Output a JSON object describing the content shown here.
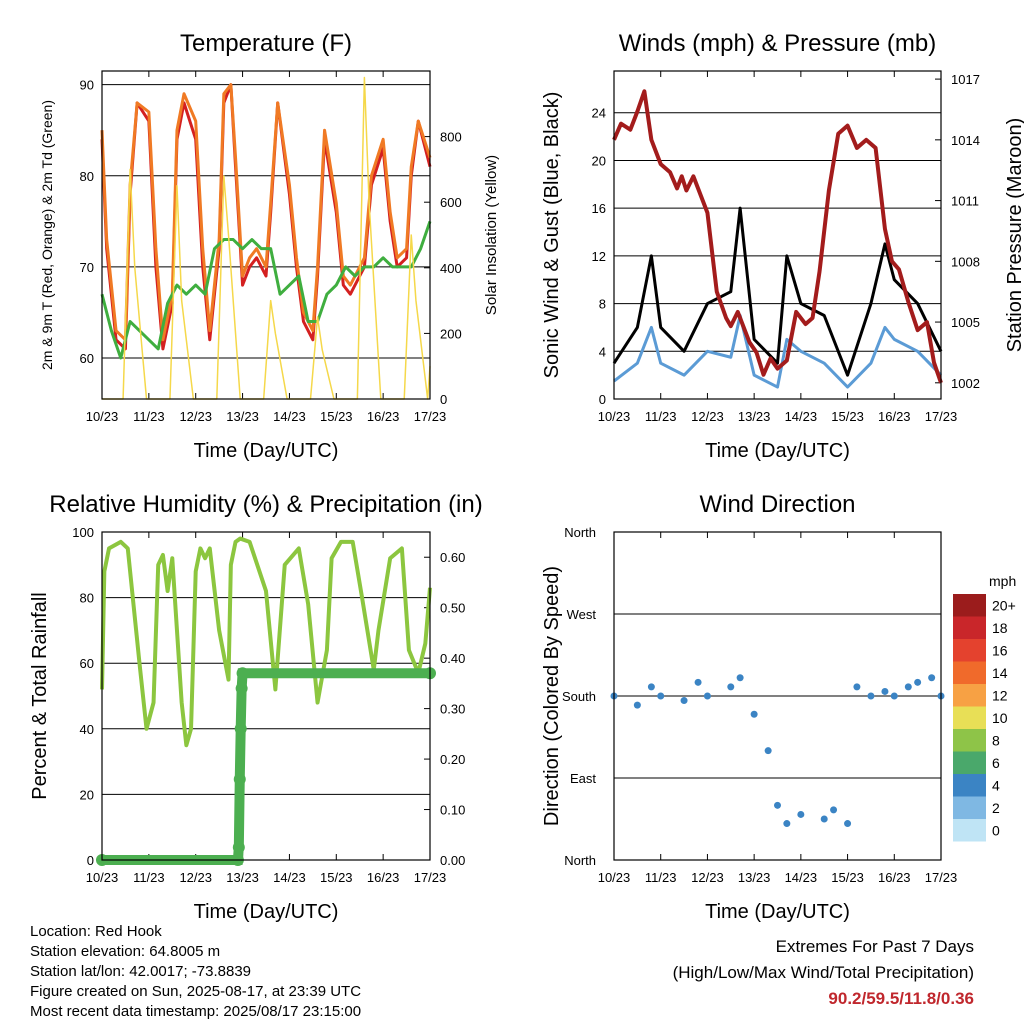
{
  "chart_data": [
    {
      "type": "line",
      "title": "Temperature (F)",
      "xlabel": "Time (Day/UTC)",
      "ylabel": "2m & 9m T (Red, Orange) & 2m Td (Green)",
      "y2label": "Solar Insolation (Yellow)",
      "ylim": [
        55.5,
        91.5
      ],
      "y2lim": [
        0,
        1000
      ],
      "yticks": [
        60,
        70,
        80,
        90
      ],
      "y2ticks": [
        0,
        200,
        400,
        600,
        800
      ],
      "xticks": [
        "10/23",
        "11/23",
        "12/23",
        "13/23",
        "14/23",
        "15/23",
        "16/23",
        "17/23"
      ],
      "grid": true,
      "series": [
        {
          "key": "t2m",
          "color": "#d42020",
          "x": [
            0,
            0.1,
            0.3,
            0.5,
            0.6,
            0.75,
            1.0,
            1.15,
            1.3,
            1.5,
            1.6,
            1.75,
            2.0,
            2.15,
            2.3,
            2.5,
            2.6,
            2.75,
            2.85,
            3.0,
            3.15,
            3.3,
            3.5,
            3.6,
            3.75,
            4.0,
            4.15,
            4.3,
            4.5,
            4.6,
            4.75,
            5.0,
            5.15,
            5.3,
            5.5,
            5.6,
            5.75,
            6.0,
            6.15,
            6.3,
            6.5,
            6.6,
            6.75,
            7.0
          ],
          "y": [
            84,
            72,
            62,
            61,
            78,
            88,
            86,
            70,
            61,
            66,
            84,
            88,
            84,
            70,
            62,
            72,
            88,
            90,
            81,
            68,
            70,
            71,
            69,
            76,
            88,
            78,
            70,
            64,
            62,
            69,
            84,
            76,
            68,
            67,
            69,
            70,
            79,
            83,
            75,
            70,
            71,
            80,
            86,
            81
          ]
        },
        {
          "key": "t9m",
          "color": "#f07a24",
          "x": [
            0,
            0.1,
            0.3,
            0.5,
            0.6,
            0.75,
            1.0,
            1.15,
            1.3,
            1.5,
            1.6,
            1.75,
            2.0,
            2.15,
            2.3,
            2.5,
            2.6,
            2.75,
            2.85,
            3.0,
            3.15,
            3.3,
            3.5,
            3.6,
            3.75,
            4.0,
            4.15,
            4.3,
            4.5,
            4.6,
            4.75,
            5.0,
            5.15,
            5.3,
            5.5,
            5.6,
            5.75,
            6.0,
            6.15,
            6.3,
            6.5,
            6.6,
            6.75,
            7.0
          ],
          "y": [
            85,
            73,
            63,
            62,
            79,
            88,
            87,
            72,
            62,
            67,
            85,
            89,
            86,
            72,
            63,
            73,
            89,
            90,
            82,
            69,
            71,
            72,
            70,
            77,
            88,
            79,
            71,
            65,
            63,
            70,
            85,
            77,
            69,
            68,
            70,
            71,
            80,
            84,
            76,
            71,
            72,
            81,
            86,
            82
          ]
        },
        {
          "key": "td2m",
          "color": "#3fae3f",
          "x": [
            0,
            0.2,
            0.4,
            0.6,
            0.8,
            1.0,
            1.2,
            1.4,
            1.6,
            1.8,
            2.0,
            2.2,
            2.4,
            2.6,
            2.8,
            3.0,
            3.2,
            3.4,
            3.6,
            3.8,
            4.0,
            4.2,
            4.4,
            4.6,
            4.8,
            5.0,
            5.2,
            5.4,
            5.6,
            5.8,
            6.0,
            6.2,
            6.4,
            6.6,
            6.8,
            7.0
          ],
          "y": [
            67,
            63,
            60,
            64,
            63,
            62,
            61,
            66,
            68,
            67,
            68,
            67,
            72,
            73,
            73,
            72,
            73,
            72,
            72,
            67,
            68,
            69,
            64,
            64,
            67,
            68,
            70,
            69,
            70,
            70,
            71,
            70,
            70,
            70,
            72,
            75
          ]
        },
        {
          "key": "solar",
          "color": "#f5d84a",
          "axis": "y2",
          "x": [
            0,
            0.45,
            0.6,
            0.7,
            0.95,
            1.45,
            1.6,
            1.7,
            1.95,
            2.45,
            2.6,
            2.7,
            2.95,
            3.45,
            3.6,
            3.7,
            3.95,
            4.45,
            4.6,
            4.7,
            4.95,
            5.45,
            5.6,
            5.7,
            5.95,
            6.45,
            6.6,
            6.7,
            6.95,
            7.0
          ],
          "y": [
            0,
            0,
            700,
            400,
            0,
            0,
            650,
            300,
            0,
            0,
            680,
            500,
            0,
            0,
            300,
            200,
            0,
            0,
            250,
            150,
            0,
            0,
            980,
            600,
            0,
            0,
            500,
            300,
            0,
            100
          ]
        }
      ]
    },
    {
      "type": "line",
      "title": "Winds (mph) & Pressure (mb)",
      "xlabel": "Time (Day/UTC)",
      "ylabel": "Sonic Wind & Gust (Blue, Black)",
      "y2label": "Station Pressure (Maroon)",
      "ylim": [
        0,
        27.5
      ],
      "y2lim": [
        1001.2,
        1017.4
      ],
      "yticks": [
        0,
        4,
        8,
        12,
        16,
        20,
        24
      ],
      "y2ticks": [
        1002,
        1005,
        1008,
        1011,
        1014,
        1017
      ],
      "xticks": [
        "10/23",
        "11/23",
        "12/23",
        "13/23",
        "14/23",
        "15/23",
        "16/23",
        "17/23"
      ],
      "grid": true,
      "series": [
        {
          "key": "wind",
          "color": "#5b9bd5",
          "x": [
            0,
            0.5,
            0.8,
            1.0,
            1.5,
            2.0,
            2.5,
            2.7,
            3.0,
            3.5,
            3.7,
            4.0,
            4.5,
            5.0,
            5.5,
            5.8,
            6.0,
            6.5,
            7.0
          ],
          "y": [
            1.5,
            3,
            6,
            3,
            2,
            4,
            3.5,
            7,
            2,
            1,
            5,
            4,
            3,
            1,
            3,
            6,
            5,
            4,
            2
          ]
        },
        {
          "key": "gust",
          "color": "#000000",
          "x": [
            0,
            0.5,
            0.8,
            1.0,
            1.5,
            2.0,
            2.5,
            2.7,
            3.0,
            3.5,
            3.7,
            4.0,
            4.5,
            5.0,
            5.5,
            5.8,
            6.0,
            6.5,
            7.0
          ],
          "y": [
            3,
            6,
            12,
            6,
            4,
            8,
            9,
            16,
            5,
            3,
            12,
            8,
            7,
            2,
            8,
            13,
            10,
            8,
            4
          ]
        },
        {
          "key": "pressure",
          "color": "#a31c1c",
          "axis": "y2",
          "x": [
            0,
            0.15,
            0.35,
            0.5,
            0.65,
            0.8,
            1.0,
            1.2,
            1.35,
            1.45,
            1.55,
            1.7,
            2.0,
            2.2,
            2.4,
            2.5,
            2.65,
            2.9,
            3.05,
            3.2,
            3.35,
            3.5,
            3.7,
            3.9,
            4.1,
            4.25,
            4.4,
            4.6,
            4.8,
            5.0,
            5.2,
            5.4,
            5.6,
            5.8,
            5.95,
            6.1,
            6.3,
            6.5,
            6.7,
            6.85,
            7.0
          ],
          "y": [
            1014,
            1014.8,
            1014.5,
            1015.4,
            1016.4,
            1014,
            1012.8,
            1012.4,
            1011.6,
            1012.2,
            1011.5,
            1012.2,
            1010.4,
            1006.5,
            1005.2,
            1004.8,
            1005.5,
            1004,
            1003.5,
            1002.4,
            1003.2,
            1002.7,
            1003.1,
            1005.5,
            1004.9,
            1005.2,
            1007.5,
            1011.5,
            1014.3,
            1014.7,
            1013.6,
            1014,
            1013.6,
            1009.6,
            1008,
            1007.6,
            1006,
            1004.6,
            1005,
            1003,
            1002
          ]
        }
      ]
    },
    {
      "type": "line",
      "title": "Relative Humidity (%) & Precipitation (in)",
      "xlabel": "Time (Day/UTC)",
      "ylabel": "Percent & Total Rainfall",
      "ylim": [
        0,
        100
      ],
      "y2lim": [
        0,
        0.65
      ],
      "yticks": [
        0,
        20,
        40,
        60,
        80,
        100
      ],
      "y2ticks": [
        0.0,
        0.1,
        0.2,
        0.3,
        0.4,
        0.5,
        0.6
      ],
      "xticks": [
        "10/23",
        "11/23",
        "12/23",
        "13/23",
        "14/23",
        "15/23",
        "16/23",
        "17/23"
      ],
      "grid": true,
      "series": [
        {
          "key": "rh",
          "color": "#8cc63f",
          "x": [
            0,
            0.05,
            0.15,
            0.4,
            0.55,
            0.8,
            0.95,
            1.1,
            1.2,
            1.3,
            1.4,
            1.5,
            1.7,
            1.8,
            1.9,
            2.0,
            2.1,
            2.2,
            2.3,
            2.5,
            2.7,
            2.75,
            2.85,
            2.95,
            3.15,
            3.5,
            3.7,
            3.9,
            4.2,
            4.4,
            4.6,
            4.8,
            4.9,
            5.1,
            5.35,
            5.55,
            5.8,
            5.9,
            6.15,
            6.4,
            6.55,
            6.75,
            6.9,
            7.0
          ],
          "y": [
            52,
            88,
            95,
            97,
            95,
            60,
            40,
            48,
            90,
            93,
            82,
            92,
            48,
            35,
            40,
            88,
            95,
            92,
            95,
            70,
            55,
            90,
            97,
            98,
            97,
            82,
            52,
            90,
            95,
            78,
            48,
            64,
            92,
            97,
            97,
            80,
            58,
            70,
            92,
            95,
            64,
            57,
            66,
            83
          ]
        },
        {
          "key": "precip",
          "color": "#4caf50",
          "axis": "y2",
          "x": [
            0,
            2.9,
            2.92,
            2.94,
            2.96,
            2.98,
            3.0,
            7.0
          ],
          "y": [
            0,
            0,
            0.025,
            0.16,
            0.26,
            0.34,
            0.37,
            0.37
          ]
        }
      ]
    },
    {
      "type": "scatter",
      "title": "Wind Direction",
      "xlabel": "Time (Day/UTC)",
      "ylabel": "Direction (Colored By Speed)",
      "yticks": [
        "North",
        "East",
        "South",
        "West",
        "North"
      ],
      "ylim": [
        0,
        360
      ],
      "xticks": [
        "10/23",
        "11/23",
        "12/23",
        "13/23",
        "14/23",
        "15/23",
        "16/23",
        "17/23"
      ],
      "grid": true,
      "legend": {
        "title": "mph",
        "labels": [
          "20+",
          "18",
          "16",
          "14",
          "12",
          "10",
          "8",
          "6",
          "4",
          "2",
          "0"
        ],
        "colors": [
          "#9b1c1c",
          "#c9262a",
          "#e4422e",
          "#f06a2b",
          "#f7a144",
          "#e8df56",
          "#8ec448",
          "#4aa86b",
          "#3b84c4",
          "#7fb8e3",
          "#bfe4f5"
        ]
      },
      "series": [
        {
          "key": "dir",
          "x": [
            0,
            0.5,
            0.8,
            1.0,
            1.5,
            1.8,
            2.0,
            2.5,
            2.7,
            3.0,
            3.3,
            3.5,
            3.7,
            4.0,
            4.5,
            4.7,
            5.0,
            5.2,
            5.5,
            5.8,
            6.0,
            6.3,
            6.5,
            6.8,
            7.0
          ],
          "y": [
            180,
            170,
            190,
            180,
            175,
            195,
            180,
            190,
            200,
            160,
            120,
            60,
            40,
            50,
            45,
            55,
            40,
            190,
            180,
            185,
            180,
            190,
            195,
            200,
            180
          ]
        }
      ]
    }
  ],
  "info": {
    "location": "Location: Red Hook",
    "elevation": "Station elevation: 64.8005 m",
    "latlon": "Station lat/lon: 42.0017; -73.8839",
    "created": "Figure created on Sun, 2025-08-17, at 23:39 UTC",
    "recent": "Most recent data timestamp: 2025/08/17 23:15:00"
  },
  "extremes": {
    "line1": "Extremes For Past 7 Days",
    "line2": "(High/Low/Max Wind/Total Precipitation)",
    "value": "90.2/59.5/11.8/0.36"
  }
}
